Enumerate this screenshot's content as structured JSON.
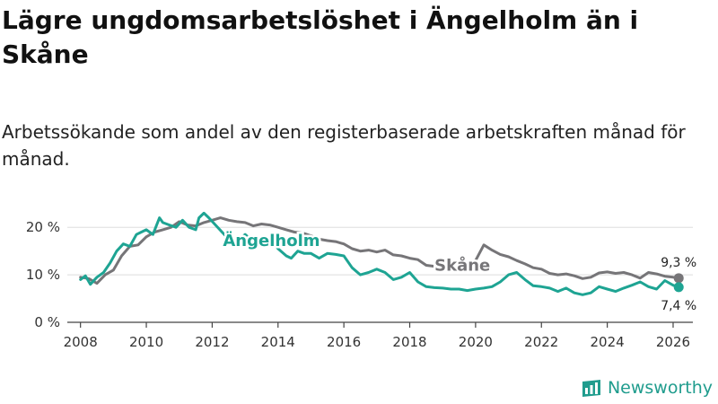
{
  "title": "Lägre ungdomsarbetslöshet i Ängelholm än i Skåne",
  "subtitle": "Arbetssökande som andel av den registerbaserade arbetskraften månad för månad.",
  "brand": "Newsworthy",
  "colors": {
    "angelholm": "#1ea493",
    "skane": "#767578",
    "brand": "#1f9c8d",
    "axis": "#444444",
    "grid": "#dddddd"
  },
  "chart_data": {
    "type": "line",
    "title": "Lägre ungdomsarbetslöshet i Ängelholm än i Skåne",
    "xlabel": "",
    "ylabel": "",
    "xlim": [
      2007.6,
      2026.6
    ],
    "ylim": [
      0,
      22.5
    ],
    "yticks": [
      0,
      10,
      20
    ],
    "ytick_labels": [
      "0 %",
      "10 %",
      "20 %"
    ],
    "xticks": [
      2008,
      2010,
      2012,
      2014,
      2016,
      2018,
      2020,
      2022,
      2024,
      2026
    ],
    "xtick_labels": [
      "2008",
      "2010",
      "2012",
      "2014",
      "2016",
      "2018",
      "2020",
      "2022",
      "2024",
      "2026"
    ],
    "series": [
      {
        "name": "Skåne",
        "label": "Skåne",
        "end_label": "9,3 %",
        "x": [
          2008.0,
          2008.25,
          2008.5,
          2008.75,
          2009.0,
          2009.25,
          2009.5,
          2009.75,
          2010.0,
          2010.25,
          2010.5,
          2010.75,
          2011.0,
          2011.25,
          2011.5,
          2011.75,
          2012.0,
          2012.25,
          2012.5,
          2012.75,
          2013.0,
          2013.25,
          2013.5,
          2013.75,
          2014.0,
          2014.25,
          2014.5,
          2014.75,
          2015.0,
          2015.25,
          2015.5,
          2015.75,
          2016.0,
          2016.25,
          2016.5,
          2016.75,
          2017.0,
          2017.25,
          2017.5,
          2017.75,
          2018.0,
          2018.25,
          2018.5,
          2018.75,
          2019.0,
          2019.25,
          2019.5,
          2019.75,
          2020.0,
          2020.25,
          2020.5,
          2020.75,
          2021.0,
          2021.25,
          2021.5,
          2021.75,
          2022.0,
          2022.25,
          2022.5,
          2022.75,
          2023.0,
          2023.25,
          2023.5,
          2023.75,
          2024.0,
          2024.25,
          2024.5,
          2024.75,
          2025.0,
          2025.25,
          2025.5,
          2025.75,
          2026.0,
          2026.17
        ],
        "values": [
          9.5,
          9.2,
          8.2,
          10.0,
          11.0,
          14.0,
          16.0,
          16.3,
          18.0,
          19.0,
          19.5,
          20.0,
          21.2,
          20.5,
          20.3,
          21.0,
          21.5,
          22.0,
          21.5,
          21.2,
          21.0,
          20.3,
          20.7,
          20.5,
          20.0,
          19.5,
          19.0,
          18.8,
          18.2,
          17.5,
          17.2,
          17.0,
          16.5,
          15.5,
          15.0,
          15.2,
          14.8,
          15.2,
          14.2,
          14.0,
          13.5,
          13.2,
          12.0,
          11.8,
          11.5,
          12.2,
          12.0,
          12.5,
          13.0,
          16.3,
          15.2,
          14.3,
          13.8,
          13.0,
          12.3,
          11.5,
          11.2,
          10.3,
          10.0,
          10.2,
          9.8,
          9.2,
          9.5,
          10.4,
          10.6,
          10.3,
          10.5,
          10.0,
          9.3,
          10.5,
          10.2,
          9.7,
          9.5,
          9.3
        ]
      },
      {
        "name": "Ängelholm",
        "label": "Ängelholm",
        "end_label": "7,4 %",
        "x": [
          2008.0,
          2008.15,
          2008.3,
          2008.5,
          2008.7,
          2008.9,
          2009.1,
          2009.3,
          2009.5,
          2009.7,
          2009.85,
          2010.0,
          2010.2,
          2010.4,
          2010.5,
          2010.7,
          2010.9,
          2011.1,
          2011.3,
          2011.5,
          2011.6,
          2011.75,
          2011.9,
          2012.1,
          2012.3,
          2012.5,
          2012.75,
          2013.0,
          2013.25,
          2013.5,
          2013.75,
          2014.0,
          2014.25,
          2014.4,
          2014.6,
          2014.8,
          2015.0,
          2015.25,
          2015.5,
          2015.75,
          2016.0,
          2016.25,
          2016.5,
          2016.75,
          2017.0,
          2017.25,
          2017.5,
          2017.75,
          2018.0,
          2018.25,
          2018.5,
          2018.75,
          2019.0,
          2019.25,
          2019.5,
          2019.75,
          2020.0,
          2020.25,
          2020.5,
          2020.75,
          2021.0,
          2021.25,
          2021.5,
          2021.75,
          2022.0,
          2022.25,
          2022.5,
          2022.75,
          2023.0,
          2023.25,
          2023.5,
          2023.75,
          2024.0,
          2024.25,
          2024.5,
          2024.75,
          2025.0,
          2025.25,
          2025.5,
          2025.75,
          2026.0,
          2026.17
        ],
        "values": [
          9.0,
          9.8,
          8.0,
          9.5,
          10.5,
          12.5,
          15.0,
          16.5,
          16.0,
          18.5,
          19.0,
          19.5,
          18.5,
          22.0,
          21.0,
          20.5,
          20.0,
          21.5,
          20.0,
          19.5,
          22.0,
          23.0,
          22.0,
          20.5,
          19.0,
          17.5,
          17.0,
          18.5,
          17.0,
          16.0,
          17.5,
          15.5,
          14.0,
          13.5,
          15.0,
          14.5,
          14.5,
          13.5,
          14.5,
          14.3,
          14.0,
          11.5,
          10.0,
          10.5,
          11.2,
          10.5,
          9.0,
          9.5,
          10.5,
          8.5,
          7.5,
          7.3,
          7.2,
          7.0,
          7.0,
          6.7,
          7.0,
          7.2,
          7.5,
          8.5,
          10.0,
          10.5,
          9.0,
          7.7,
          7.5,
          7.2,
          6.5,
          7.2,
          6.2,
          5.8,
          6.2,
          7.5,
          7.0,
          6.5,
          7.2,
          7.8,
          8.5,
          7.5,
          7.0,
          8.8,
          7.8,
          7.4
        ]
      }
    ]
  }
}
